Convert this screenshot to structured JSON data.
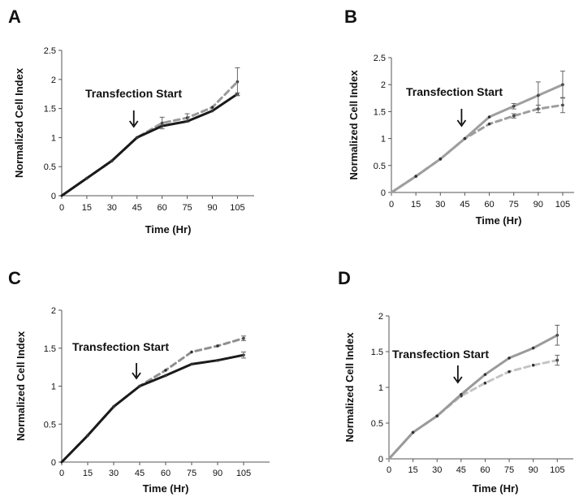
{
  "chart_data": [
    {
      "panel": "A",
      "type": "line",
      "xlabel": "Time (Hr)",
      "ylabel": "Normalized Cell Index",
      "x": [
        0,
        15,
        30,
        45,
        60,
        75,
        90,
        105
      ],
      "xticks": [
        "0",
        "15",
        "30",
        "45",
        "60",
        "75",
        "90",
        "105"
      ],
      "yticks": [
        "0",
        "0.5",
        "1",
        "1.5",
        "2",
        "2.5"
      ],
      "ylim": [
        0,
        2.5
      ],
      "grid": false,
      "annotation": {
        "text": "Transfection Start",
        "x": 45
      },
      "series": [
        {
          "style": "solid",
          "color": "#1a1a1a",
          "values": [
            0,
            0.3,
            0.6,
            1.0,
            1.2,
            1.28,
            1.46,
            1.75
          ],
          "error": [
            0,
            0,
            0,
            0,
            0,
            0,
            0,
            0.02
          ]
        },
        {
          "style": "dashed",
          "color": "#9a9a9a",
          "values": [
            0,
            0.3,
            0.6,
            1.0,
            1.25,
            1.34,
            1.52,
            1.96
          ],
          "error": [
            0,
            0,
            0,
            0,
            0.1,
            0.07,
            0,
            0.24
          ]
        }
      ]
    },
    {
      "panel": "B",
      "type": "line",
      "xlabel": "Time (Hr)",
      "ylabel": "Normalized Cell Index",
      "x": [
        0,
        15,
        30,
        45,
        60,
        75,
        90,
        105
      ],
      "xticks": [
        "0",
        "15",
        "30",
        "45",
        "60",
        "75",
        "90",
        "105"
      ],
      "yticks": [
        "0",
        "0.5",
        "1",
        "1.5",
        "2",
        "2.5"
      ],
      "ylim": [
        0,
        2.5
      ],
      "grid": false,
      "annotation": {
        "text": "Transfection Start",
        "x": 45
      },
      "series": [
        {
          "style": "solid",
          "color": "#9e9e9e",
          "values": [
            0,
            0.3,
            0.62,
            1.0,
            1.4,
            1.6,
            1.8,
            2.0
          ],
          "error": [
            0,
            0,
            0,
            0,
            0,
            0.05,
            0.25,
            0.25
          ]
        },
        {
          "style": "dashed",
          "color": "#9e9e9e",
          "values": [
            0,
            0.3,
            0.62,
            1.0,
            1.27,
            1.42,
            1.55,
            1.62
          ],
          "error": [
            0,
            0,
            0,
            0,
            0,
            0.04,
            0.07,
            0.14
          ]
        }
      ]
    },
    {
      "panel": "C",
      "type": "line",
      "xlabel": "Time (Hr)",
      "ylabel": "Normalized Cell Index",
      "x": [
        0,
        15,
        30,
        45,
        60,
        75,
        90,
        105
      ],
      "xticks": [
        "0",
        "15",
        "30",
        "45",
        "60",
        "75",
        "90",
        "105"
      ],
      "yticks": [
        "0",
        "0.5",
        "1",
        "1.5",
        "2"
      ],
      "ylim": [
        0,
        2
      ],
      "grid": false,
      "annotation": {
        "text": "Transfection Start",
        "x": 45
      },
      "series": [
        {
          "style": "solid",
          "color": "#1a1a1a",
          "values": [
            0,
            0.35,
            0.73,
            1.0,
            1.14,
            1.29,
            1.34,
            1.41
          ],
          "error": [
            0,
            0,
            0,
            0,
            0,
            0,
            0,
            0.04
          ]
        },
        {
          "style": "dashed",
          "color": "#8f8f8f",
          "values": [
            0,
            0.35,
            0.73,
            1.0,
            1.21,
            1.45,
            1.53,
            1.63
          ],
          "error": [
            0,
            0,
            0,
            0,
            0,
            0,
            0,
            0.03
          ]
        }
      ]
    },
    {
      "panel": "D",
      "type": "line",
      "xlabel": "Time (Hr)",
      "ylabel": "Normalized Cell Index",
      "x": [
        0,
        15,
        30,
        45,
        60,
        75,
        90,
        105
      ],
      "xticks": [
        "0",
        "15",
        "30",
        "45",
        "60",
        "75",
        "90",
        "105"
      ],
      "yticks": [
        "0",
        "0.5",
        "1",
        "1.5",
        "2"
      ],
      "ylim": [
        0,
        2
      ],
      "grid": false,
      "annotation": {
        "text": "Transfection Start",
        "x": 45
      },
      "series": [
        {
          "style": "solid",
          "color": "#9a9a9a",
          "values": [
            0,
            0.37,
            0.6,
            0.9,
            1.18,
            1.41,
            1.55,
            1.73
          ],
          "error": [
            0,
            0,
            0,
            0,
            0,
            0,
            0,
            0.14
          ]
        },
        {
          "style": "dashed",
          "color": "#c4c4c4",
          "values": [
            0,
            0.37,
            0.6,
            0.88,
            1.06,
            1.22,
            1.31,
            1.38
          ],
          "error": [
            0,
            0,
            0,
            0,
            0,
            0,
            0,
            0.07
          ]
        }
      ]
    }
  ]
}
